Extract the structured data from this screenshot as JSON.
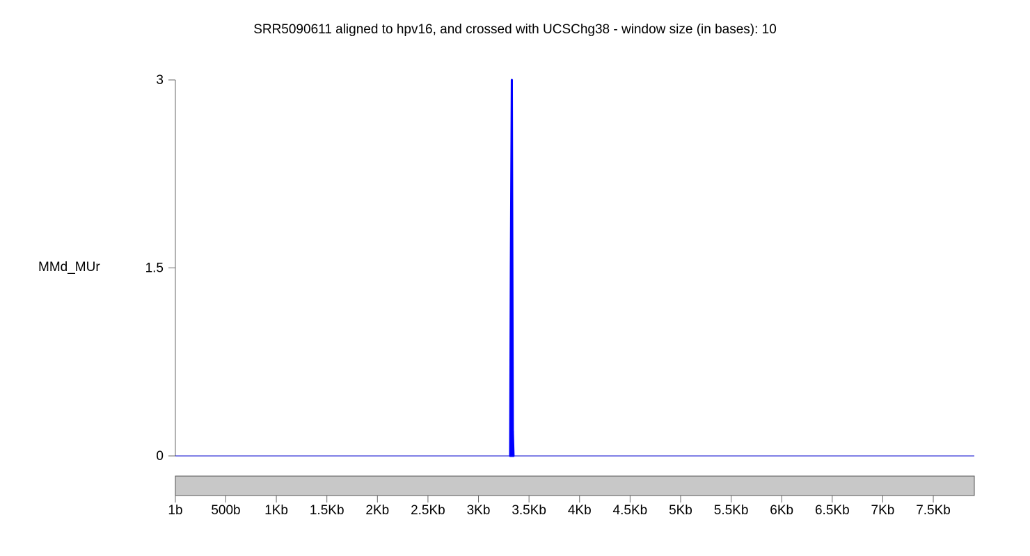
{
  "chart_data": {
    "type": "area",
    "title": "SRR5090611 aligned to hpv16, and crossed with UCSChg38 - window size (in bases):  10",
    "track_label": "MMd_MUr",
    "window_size": 10,
    "xlim": [
      1,
      7906
    ],
    "ylim": [
      0,
      3
    ],
    "y_ticks": [
      {
        "value": 0,
        "label": "0"
      },
      {
        "value": 1.5,
        "label": "1.5"
      },
      {
        "value": 3,
        "label": "3"
      }
    ],
    "x_ticks": [
      {
        "value": 1,
        "label": "1b"
      },
      {
        "value": 500,
        "label": "500b"
      },
      {
        "value": 1000,
        "label": "1Kb"
      },
      {
        "value": 1500,
        "label": "1.5Kb"
      },
      {
        "value": 2000,
        "label": "2Kb"
      },
      {
        "value": 2500,
        "label": "2.5Kb"
      },
      {
        "value": 3000,
        "label": "3Kb"
      },
      {
        "value": 3500,
        "label": "3.5Kb"
      },
      {
        "value": 4000,
        "label": "4Kb"
      },
      {
        "value": 4500,
        "label": "4.5Kb"
      },
      {
        "value": 5000,
        "label": "5Kb"
      },
      {
        "value": 5500,
        "label": "5.5Kb"
      },
      {
        "value": 6000,
        "label": "6Kb"
      },
      {
        "value": 6500,
        "label": "6.5Kb"
      },
      {
        "value": 7000,
        "label": "7Kb"
      },
      {
        "value": 7500,
        "label": "7.5Kb"
      }
    ],
    "series": [
      {
        "color": "#0000ff",
        "x": [
          3320,
          3330,
          3340
        ],
        "y": [
          1.5,
          3,
          0.2
        ]
      }
    ],
    "genome_bar_color": "#c8c8c8"
  }
}
